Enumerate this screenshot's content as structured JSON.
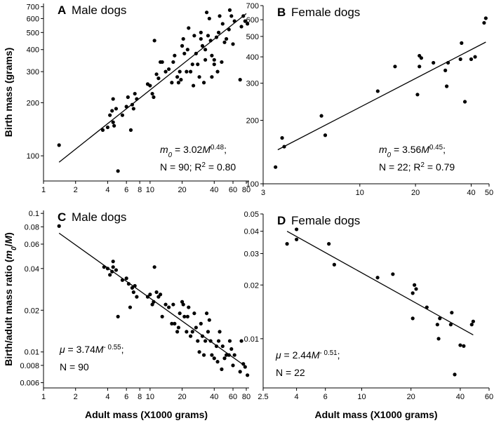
{
  "chart_data": [
    {
      "type": "scatter",
      "letter": "A",
      "title": "Male dogs",
      "color": "#000000",
      "log_x": true,
      "log_y": true,
      "ylabel": [
        "Birth mass (grams)"
      ],
      "ylabel_styles": [
        "n"
      ],
      "xlim": [
        1,
        85
      ],
      "ylim": [
        72,
        730
      ],
      "xticks": [
        1,
        2,
        4,
        6,
        8,
        10,
        20,
        40,
        60,
        80
      ],
      "yticks": [
        100,
        200,
        300,
        400,
        500,
        600,
        700
      ],
      "x": [
        1.4,
        3.6,
        4,
        4.2,
        4.5,
        4.4,
        4.8,
        4.5,
        4.6,
        5,
        5.5,
        6,
        6.2,
        6.6,
        6.8,
        7,
        7.2,
        7.5,
        9.5,
        10,
        10.5,
        10.8,
        11,
        11.5,
        12,
        12.5,
        13,
        14,
        15,
        16,
        16.5,
        17,
        18,
        18.5,
        19,
        19.5,
        20,
        20.5,
        21,
        22,
        22.5,
        23,
        24,
        25,
        25.5,
        26,
        27,
        28,
        29,
        30,
        30,
        31,
        32,
        33,
        33,
        34,
        35,
        36,
        37,
        38,
        38,
        40,
        40,
        42,
        43,
        44,
        45,
        47,
        48,
        50,
        52,
        55,
        56,
        58,
        60,
        62,
        70,
        72,
        75,
        78,
        82
      ],
      "values": [
        115,
        140,
        145,
        170,
        210,
        180,
        185,
        155,
        148,
        82,
        170,
        190,
        215,
        140,
        195,
        185,
        225,
        210,
        255,
        250,
        225,
        215,
        450,
        290,
        275,
        340,
        340,
        300,
        310,
        260,
        340,
        370,
        280,
        260,
        300,
        270,
        420,
        460,
        380,
        300,
        400,
        530,
        300,
        330,
        250,
        480,
        380,
        330,
        280,
        460,
        500,
        420,
        260,
        400,
        350,
        650,
        480,
        600,
        450,
        280,
        370,
        350,
        330,
        470,
        300,
        500,
        620,
        340,
        560,
        440,
        460,
        520,
        670,
        620,
        430,
        580,
        270,
        540,
        620,
        580,
        560
      ],
      "fit": {
        "x": [
          1.4,
          80
        ],
        "values": [
          92,
          640
        ]
      },
      "eq1": [
        "m",
        "0",
        " = 3.02",
        "M",
        "0.48",
        ";"
      ],
      "eq1_styles": [
        "i",
        "is",
        "n",
        "i",
        "sup",
        "n"
      ],
      "eq2": [
        "N = 90; R",
        "2",
        " = 0.80"
      ],
      "eq2_styles": [
        "n",
        "sup",
        "n"
      ]
    },
    {
      "type": "scatter",
      "letter": "B",
      "title": "Female dogs",
      "color": "#000000",
      "log_x": true,
      "log_y": true,
      "xlim": [
        3,
        50
      ],
      "ylim": [
        100,
        700
      ],
      "xticks": [
        3,
        10,
        20,
        40,
        50
      ],
      "yticks": [
        100,
        200,
        300,
        400,
        500,
        600,
        700
      ],
      "x": [
        3.5,
        3.8,
        3.9,
        6.2,
        6.5,
        12.5,
        15.5,
        20.5,
        21,
        21,
        21.5,
        25,
        29,
        29.5,
        30,
        35,
        35.5,
        37,
        40,
        42,
        47,
        48
      ],
      "values": [
        120,
        165,
        150,
        210,
        170,
        275,
        360,
        265,
        360,
        405,
        395,
        375,
        345,
        290,
        375,
        390,
        465,
        245,
        390,
        400,
        580,
        610
      ],
      "fit": {
        "x": [
          3.6,
          48
        ],
        "values": [
          145,
          470
        ]
      },
      "eq1": [
        "m",
        "0",
        " = 3.56",
        "M",
        "0.45",
        ";"
      ],
      "eq1_styles": [
        "i",
        "is",
        "n",
        "i",
        "sup",
        "n"
      ],
      "eq2": [
        "N = 22; R",
        "2",
        " = 0.79"
      ],
      "eq2_styles": [
        "n",
        "sup",
        "n"
      ]
    },
    {
      "type": "scatter",
      "letter": "C",
      "title": "Male dogs",
      "color": "#000000",
      "log_x": true,
      "log_y": true,
      "ylabel": [
        "Birth/adult mass ratio (",
        "m",
        "0",
        "/",
        "M",
        ")"
      ],
      "ylabel_styles": [
        "n",
        "i",
        "is",
        "n",
        "i",
        "n"
      ],
      "xlabel": "Adult mass (X1000 grams)",
      "xlim": [
        1,
        85
      ],
      "ylim": [
        0.0055,
        0.105
      ],
      "xticks": [
        1,
        2,
        4,
        6,
        8,
        10,
        20,
        40,
        60,
        80
      ],
      "yticks": [
        0.006,
        0.008,
        0.01,
        0.02,
        0.04,
        0.06,
        0.08,
        0.1
      ],
      "x": [
        1.4,
        3.7,
        4,
        4.2,
        4.5,
        4.5,
        4.4,
        4.8,
        5,
        5.5,
        6,
        6.3,
        6.5,
        6.8,
        7,
        7.2,
        7.5,
        9.5,
        10,
        10.5,
        10.8,
        11,
        11.5,
        12,
        12.5,
        13,
        14,
        15,
        16,
        16.5,
        17,
        18,
        18.5,
        19,
        20,
        20.5,
        21,
        22,
        22.5,
        23,
        24,
        25,
        26,
        27,
        28,
        29,
        30,
        31,
        32,
        33,
        34,
        35,
        36,
        37,
        38,
        40,
        42,
        43,
        44,
        45,
        47,
        48,
        50,
        52,
        55,
        56,
        58,
        60,
        62,
        70,
        72,
        75,
        78,
        82
      ],
      "values": [
        0.081,
        0.041,
        0.04,
        0.036,
        0.045,
        0.041,
        0.038,
        0.039,
        0.018,
        0.033,
        0.034,
        0.031,
        0.021,
        0.029,
        0.027,
        0.03,
        0.025,
        0.025,
        0.026,
        0.022,
        0.023,
        0.041,
        0.027,
        0.025,
        0.026,
        0.018,
        0.022,
        0.021,
        0.016,
        0.022,
        0.016,
        0.014,
        0.015,
        0.019,
        0.023,
        0.022,
        0.018,
        0.014,
        0.018,
        0.021,
        0.013,
        0.014,
        0.019,
        0.015,
        0.012,
        0.01,
        0.016,
        0.013,
        0.0095,
        0.012,
        0.019,
        0.014,
        0.017,
        0.012,
        0.0095,
        0.009,
        0.011,
        0.0085,
        0.012,
        0.014,
        0.0075,
        0.011,
        0.009,
        0.0095,
        0.0095,
        0.012,
        0.0105,
        0.008,
        0.0095,
        0.0072,
        0.012,
        0.0082,
        0.0078,
        0.0068
      ],
      "fit": {
        "x": [
          1.4,
          80
        ],
        "values": [
          0.072,
          0.0078
        ]
      },
      "eq1": [
        "μ",
        " = 3.74",
        "M",
        "- 0.55",
        ";"
      ],
      "eq1_styles": [
        "i",
        "n",
        "i",
        "sup",
        "n"
      ],
      "eq2": [
        "N = 90"
      ],
      "eq2_styles": [
        "n"
      ]
    },
    {
      "type": "scatter",
      "letter": "D",
      "title": "Female dogs",
      "color": "#000000",
      "log_x": true,
      "log_y": true,
      "xlabel": "Adult mass (X1000 grams)",
      "xlim": [
        2.5,
        60
      ],
      "ylim": [
        0.0053,
        0.05
      ],
      "xticks": [
        2.5,
        4,
        6,
        10,
        20,
        40,
        60
      ],
      "yticks": [
        0.01,
        0.02,
        0.03,
        0.04,
        0.05
      ],
      "x": [
        3.5,
        4,
        4,
        6.3,
        6.8,
        12.5,
        15.5,
        20.5,
        20.5,
        21,
        21.5,
        25,
        29,
        29.5,
        30,
        35,
        35.5,
        37,
        40,
        42,
        47,
        48
      ],
      "values": [
        0.034,
        0.041,
        0.036,
        0.034,
        0.026,
        0.022,
        0.023,
        0.013,
        0.018,
        0.02,
        0.019,
        0.015,
        0.012,
        0.01,
        0.013,
        0.012,
        0.014,
        0.0063,
        0.0092,
        0.0091,
        0.012,
        0.0125
      ],
      "fit": {
        "x": [
          3.5,
          48
        ],
        "values": [
          0.04,
          0.0105
        ]
      },
      "eq1": [
        "μ",
        " = 2.44",
        "M",
        "- 0.51",
        ";"
      ],
      "eq1_styles": [
        "i",
        "n",
        "i",
        "sup",
        "n"
      ],
      "eq2": [
        "N = 22"
      ],
      "eq2_styles": [
        "n"
      ]
    }
  ]
}
